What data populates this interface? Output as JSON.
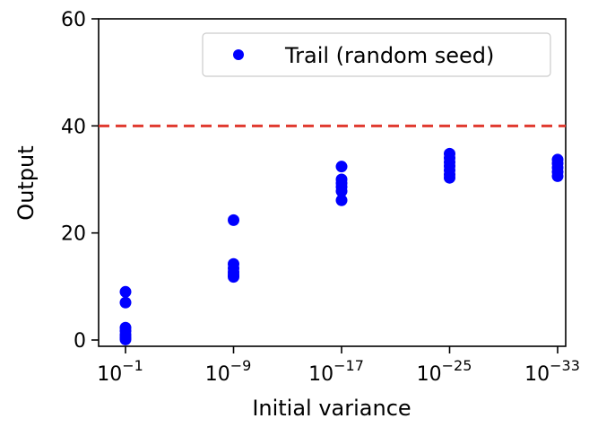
{
  "chart_data": {
    "type": "scatter",
    "xlabel": "Initial variance",
    "ylabel": "Output",
    "ylim": [
      0,
      60
    ],
    "y_ticks": [
      "0",
      "20",
      "40",
      "60"
    ],
    "x_scale": "log",
    "x_ticks": [
      {
        "base": "10",
        "exp": "−1"
      },
      {
        "base": "10",
        "exp": "−9"
      },
      {
        "base": "10",
        "exp": "−17"
      },
      {
        "base": "10",
        "exp": "−25"
      },
      {
        "base": "10",
        "exp": "−33"
      }
    ],
    "x_tick_exponents": [
      -1,
      -9,
      -17,
      -25,
      -33
    ],
    "series": [
      {
        "name": "Trail (random seed)",
        "color": "#0000ff",
        "points": [
          {
            "x": 0.1,
            "y": 9.0
          },
          {
            "x": 0.1,
            "y": 7.0
          },
          {
            "x": 0.1,
            "y": 2.3
          },
          {
            "x": 0.1,
            "y": 1.7
          },
          {
            "x": 0.1,
            "y": 1.0
          },
          {
            "x": 0.1,
            "y": 0.5
          },
          {
            "x": 0.1,
            "y": 0.1
          },
          {
            "x": 1e-09,
            "y": 22.4
          },
          {
            "x": 1e-09,
            "y": 14.2
          },
          {
            "x": 1e-09,
            "y": 13.4
          },
          {
            "x": 1e-09,
            "y": 12.7
          },
          {
            "x": 1e-09,
            "y": 12.2
          },
          {
            "x": 1e-09,
            "y": 11.8
          },
          {
            "x": 1e-17,
            "y": 32.4
          },
          {
            "x": 1e-17,
            "y": 30.0
          },
          {
            "x": 1e-17,
            "y": 29.3
          },
          {
            "x": 1e-17,
            "y": 28.6
          },
          {
            "x": 1e-17,
            "y": 27.8
          },
          {
            "x": 1e-17,
            "y": 26.1
          },
          {
            "x": 1e-25,
            "y": 34.8
          },
          {
            "x": 1e-25,
            "y": 34.0
          },
          {
            "x": 1e-25,
            "y": 33.2
          },
          {
            "x": 1e-25,
            "y": 32.5
          },
          {
            "x": 1e-25,
            "y": 31.7
          },
          {
            "x": 1e-25,
            "y": 30.9
          },
          {
            "x": 1e-25,
            "y": 30.3
          },
          {
            "x": 1e-33,
            "y": 33.7
          },
          {
            "x": 1e-33,
            "y": 33.0
          },
          {
            "x": 1e-33,
            "y": 32.2
          },
          {
            "x": 1e-33,
            "y": 31.4
          },
          {
            "x": 1e-33,
            "y": 30.6
          }
        ]
      }
    ],
    "reference_line": {
      "y": 40,
      "style": "dashed",
      "color": "#e03a2f"
    },
    "legend": {
      "placement": "top-right",
      "label": "Trail (random seed)"
    },
    "grid": false
  }
}
